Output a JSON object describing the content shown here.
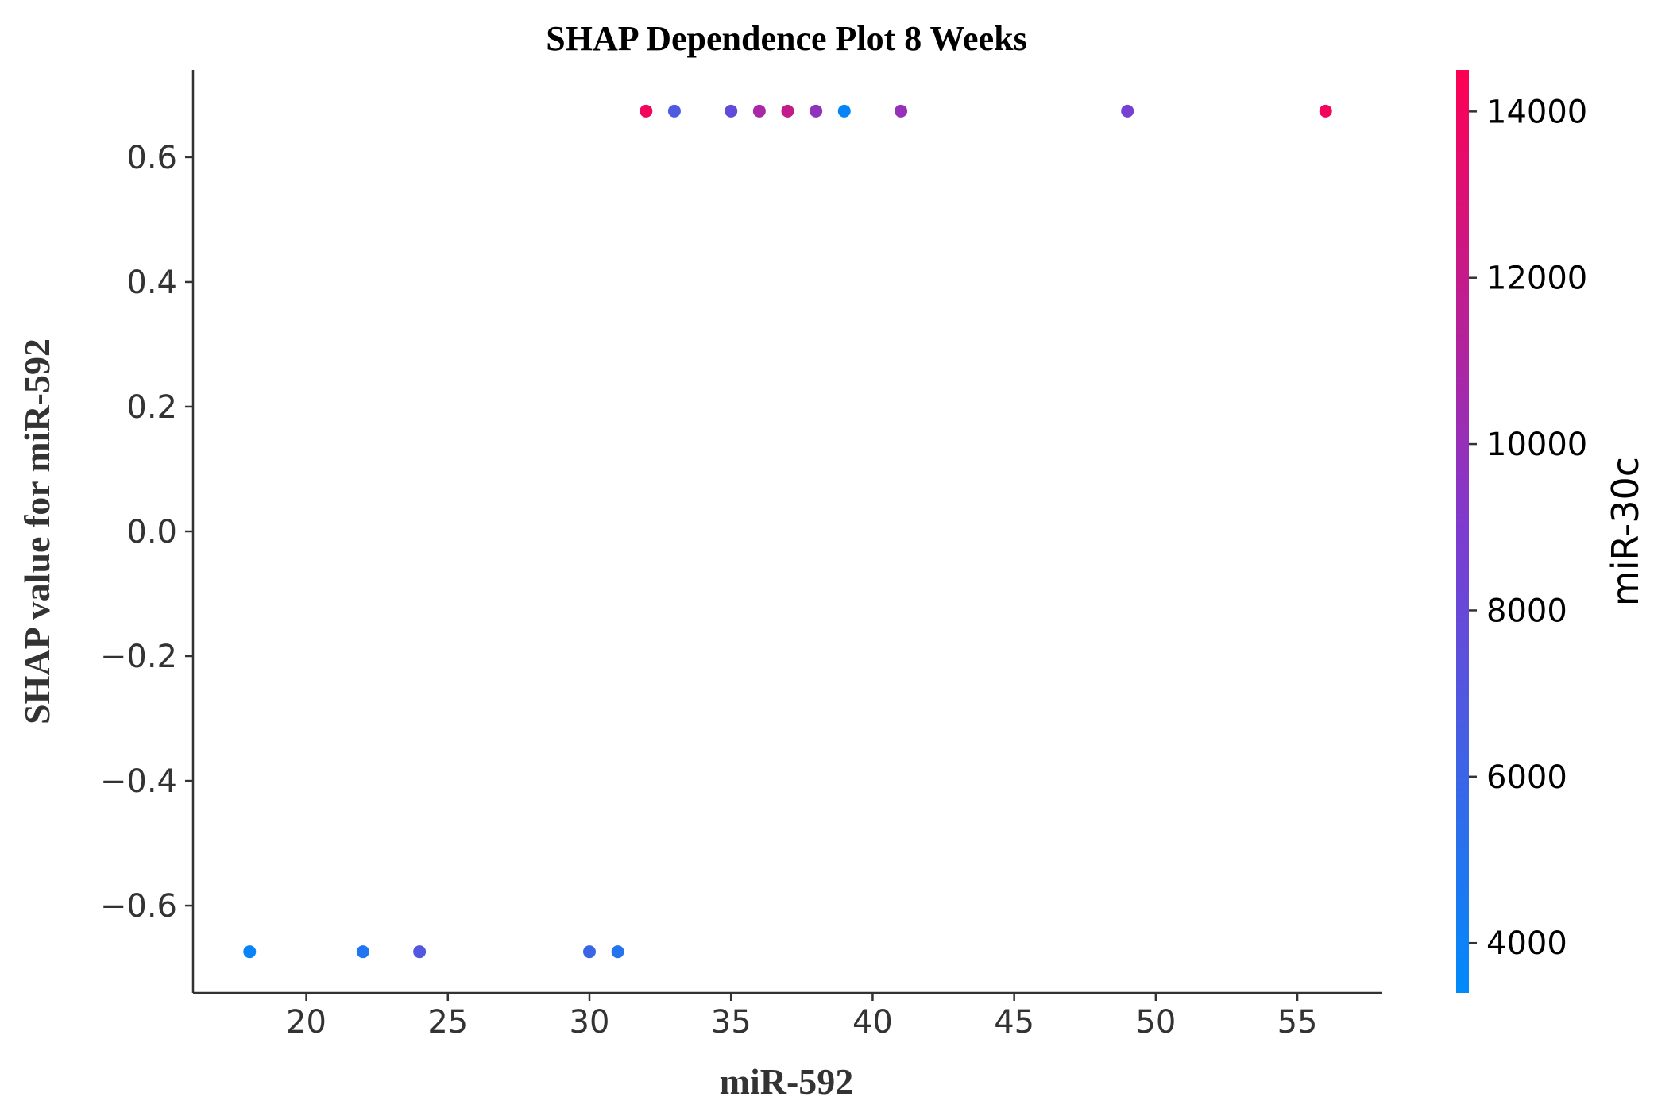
{
  "chart_data": {
    "type": "scatter",
    "title": "SHAP Dependence Plot 8 Weeks",
    "xlabel": "miR-592",
    "ylabel": "SHAP value for miR-592",
    "xlim": [
      16,
      58
    ],
    "ylim": [
      -0.74,
      0.74
    ],
    "xticks": [
      20,
      25,
      30,
      35,
      40,
      45,
      50,
      55
    ],
    "yticks": [
      0.6,
      0.4,
      0.2,
      0.0,
      -0.2,
      -0.4,
      -0.6
    ],
    "ytick_labels": [
      "0.6",
      "0.4",
      "0.2",
      "0.0",
      "−0.2",
      "−0.4",
      "−0.6"
    ],
    "grid": false,
    "colorbar": {
      "label": "miR-30c",
      "range": [
        3400,
        14500
      ],
      "ticks": [
        4000,
        6000,
        8000,
        10000,
        12000,
        14000
      ],
      "tick_labels": [
        "4000",
        "6000",
        "8000",
        "10000",
        "12000",
        "14000"
      ],
      "color_low": "#008afb",
      "color_mid": "#7d3bd0",
      "color_high": "#ff0052"
    },
    "points": [
      {
        "x": 32,
        "y": 0.674,
        "c": 14000
      },
      {
        "x": 33,
        "y": 0.674,
        "c": 6800
      },
      {
        "x": 35,
        "y": 0.674,
        "c": 7800
      },
      {
        "x": 36,
        "y": 0.674,
        "c": 10800
      },
      {
        "x": 37,
        "y": 0.674,
        "c": 12000
      },
      {
        "x": 38,
        "y": 0.674,
        "c": 9800
      },
      {
        "x": 39,
        "y": 0.674,
        "c": 3800
      },
      {
        "x": 41,
        "y": 0.674,
        "c": 10000
      },
      {
        "x": 49,
        "y": 0.674,
        "c": 8600
      },
      {
        "x": 56,
        "y": 0.674,
        "c": 14000
      },
      {
        "x": 18,
        "y": -0.674,
        "c": 3800
      },
      {
        "x": 22,
        "y": -0.674,
        "c": 4800
      },
      {
        "x": 24,
        "y": -0.674,
        "c": 7000
      },
      {
        "x": 30,
        "y": -0.674,
        "c": 6000
      },
      {
        "x": 31,
        "y": -0.674,
        "c": 5000
      }
    ]
  }
}
